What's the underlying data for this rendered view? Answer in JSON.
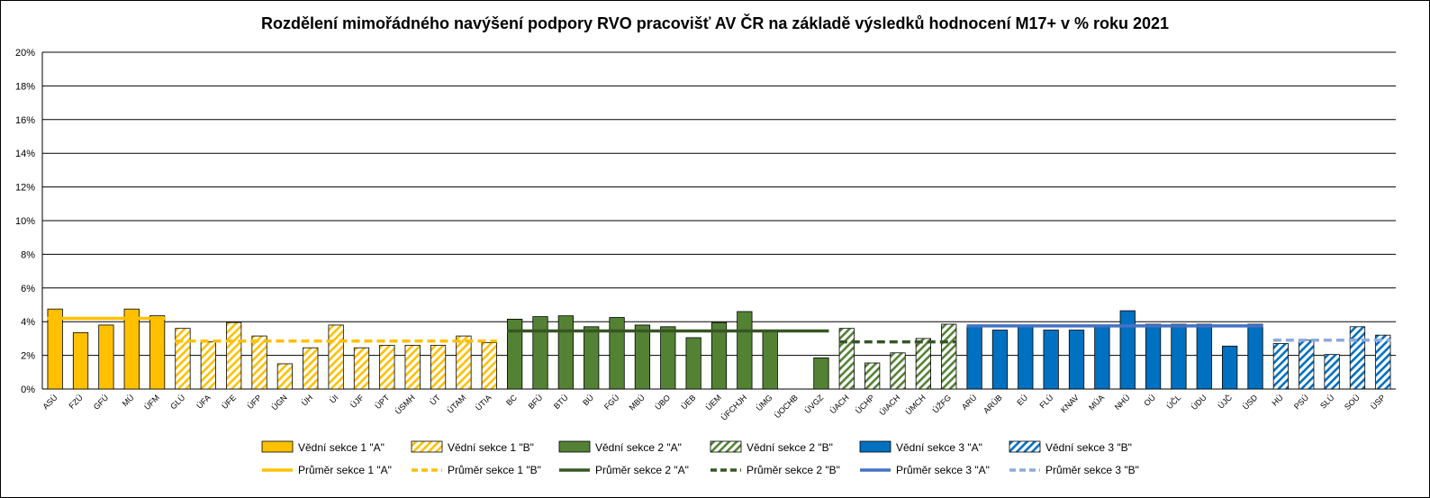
{
  "chart_data": {
    "type": "bar",
    "title": "Rozdělení mimořádného navýšení podpory RVO pracovišť AV ČR na základě výsledků hodnocení M17+ v % roku 2021",
    "xlabel": "",
    "ylabel": "",
    "ylim": [
      0,
      20
    ],
    "yticks": [
      "0%",
      "2%",
      "4%",
      "6%",
      "8%",
      "10%",
      "12%",
      "14%",
      "16%",
      "18%",
      "20%"
    ],
    "grid": true,
    "legend_position": "bottom",
    "categories": [
      "ASÚ",
      "FZÚ",
      "GFÚ",
      "MÚ",
      "ÚFM",
      "GLÚ",
      "ÚFA",
      "ÚFE",
      "ÚFP",
      "ÚGN",
      "ÚH",
      "ÚI",
      "ÚJF",
      "ÚPT",
      "ÚSMH",
      "ÚT",
      "ÚTAM",
      "ÚTIA",
      "BC",
      "BFÚ",
      "BTÚ",
      "BÚ",
      "FGÚ",
      "MBÚ",
      "ÚBO",
      "ÚEB",
      "ÚEM",
      "ÚFCHJH",
      "ÚMG",
      "ÚOCHB",
      "ÚVGZ",
      "ÚACH",
      "ÚCHP",
      "ÚIACH",
      "ÚMCH",
      "ÚŽFG",
      "ARÚ",
      "ARÚB",
      "EÚ",
      "FLÚ",
      "KNAV",
      "MÚA",
      "NHÚ",
      "OÚ",
      "ÚČL",
      "ÚDU",
      "ÚJČ",
      "ÚSD",
      "HÚ",
      "PSÚ",
      "SLÚ",
      "SOÚ",
      "ÚSP"
    ],
    "values": [
      4.75,
      3.35,
      3.8,
      4.75,
      4.35,
      3.6,
      2.8,
      3.95,
      3.15,
      1.5,
      2.45,
      3.8,
      2.45,
      2.6,
      2.6,
      2.6,
      3.15,
      2.75,
      4.15,
      4.3,
      4.35,
      3.7,
      4.25,
      3.8,
      3.7,
      3.05,
      3.95,
      4.6,
      3.5,
      0,
      1.85,
      3.6,
      1.55,
      2.15,
      3.0,
      3.85,
      3.75,
      3.5,
      3.7,
      3.5,
      3.5,
      3.8,
      4.65,
      3.85,
      3.85,
      3.85,
      2.55,
      3.85,
      2.7,
      2.9,
      2.05,
      3.7,
      3.2
    ],
    "series": [
      {
        "name": "Vědní sekce 1 \"A\"",
        "color": "#FFC000",
        "pattern": "solid",
        "range": [
          0,
          4
        ]
      },
      {
        "name": "Vědní sekce 1 \"B\"",
        "color": "#FFC000",
        "pattern": "hatched",
        "range": [
          5,
          17
        ]
      },
      {
        "name": "Vědní sekce 2 \"A\"",
        "color": "#548235",
        "pattern": "solid",
        "range": [
          18,
          30
        ]
      },
      {
        "name": "Vědní sekce 2 \"B\"",
        "color": "#548235",
        "pattern": "hatched",
        "range": [
          31,
          35
        ]
      },
      {
        "name": "Vědní sekce 3 \"A\"",
        "color": "#0070C0",
        "pattern": "solid",
        "range": [
          36,
          47
        ]
      },
      {
        "name": "Vědní sekce 3 \"B\"",
        "color": "#0070C0",
        "pattern": "hatched",
        "range": [
          48,
          52
        ]
      }
    ],
    "averages": [
      {
        "name": "Průměr sekce 1 \"A\"",
        "value": 4.2,
        "color": "#FFC000",
        "dash": "solid",
        "range": [
          0,
          4
        ]
      },
      {
        "name": "Průměr sekce 1 \"B\"",
        "value": 2.85,
        "color": "#FFC000",
        "dash": "dashed",
        "range": [
          5,
          17
        ]
      },
      {
        "name": "Průměr sekce 2 \"A\"",
        "value": 3.45,
        "color": "#375623",
        "dash": "solid",
        "range": [
          18,
          30
        ]
      },
      {
        "name": "Průměr sekce 2 \"B\"",
        "value": 2.8,
        "color": "#375623",
        "dash": "dashed",
        "range": [
          31,
          35
        ]
      },
      {
        "name": "Průměr sekce 3 \"A\"",
        "value": 3.75,
        "color": "#4472C4",
        "dash": "solid",
        "range": [
          36,
          47
        ]
      },
      {
        "name": "Průměr sekce 3 \"B\"",
        "value": 2.9,
        "color": "#8FAADC",
        "dash": "dashed",
        "range": [
          48,
          52
        ]
      }
    ]
  }
}
